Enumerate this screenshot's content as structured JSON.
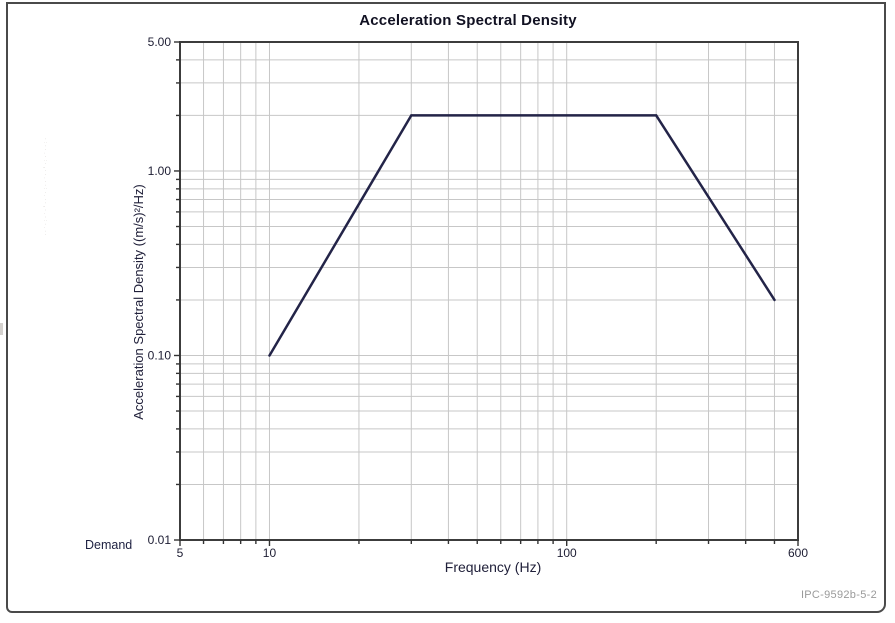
{
  "page": {
    "caption": "IPC-9592b-5-2",
    "margin_artifact": "·:··.·:·,··.··:·.··,·.·:·.··"
  },
  "chart_data": {
    "type": "line",
    "title": "Acceleration Spectral Density",
    "xlabel": "Frequency (Hz)",
    "ylabel": "Acceleration Spectral Density ((m/s)²/Hz)",
    "xscale": "log",
    "yscale": "log",
    "xlim": [
      5,
      600
    ],
    "ylim": [
      0.01,
      5
    ],
    "grid": true,
    "x_major_ticks": [
      {
        "value": 5,
        "label": "5"
      },
      {
        "value": 10,
        "label": "10"
      },
      {
        "value": 100,
        "label": "100"
      },
      {
        "value": 600,
        "label": "600"
      }
    ],
    "y_major_ticks": [
      {
        "value": 5,
        "label": "5.00"
      },
      {
        "value": 1,
        "label": "1.00"
      },
      {
        "value": 0.1,
        "label": "0.10"
      },
      {
        "value": 0.01,
        "label": "0.01"
      }
    ],
    "series": [
      {
        "name": "Demand",
        "color": "#232448",
        "points": [
          [
            10,
            0.1
          ],
          [
            30,
            2.0
          ],
          [
            200,
            2.0
          ],
          [
            500,
            0.2
          ]
        ]
      }
    ]
  },
  "colors": {
    "grid": "#c7c7c7",
    "axis": "#3c3c3c",
    "tick": "#333333",
    "tick_text": "#1d1d33",
    "frame": "#4a4a4a"
  }
}
